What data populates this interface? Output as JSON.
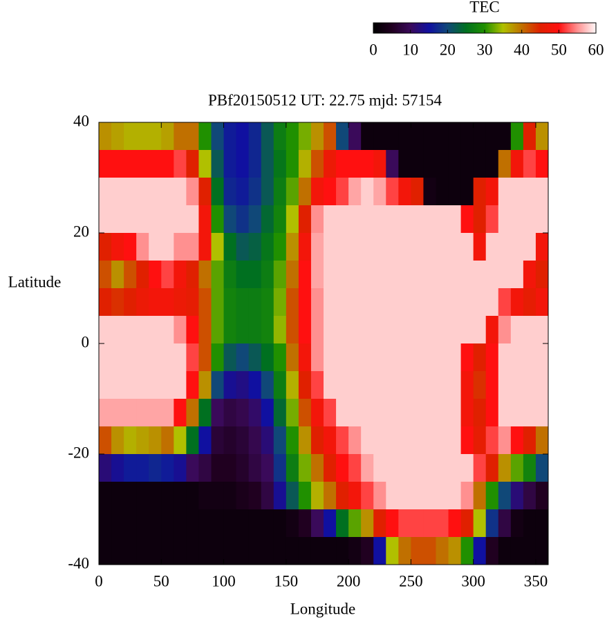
{
  "chart_data": {
    "type": "heatmap",
    "title": "PBf20150512  UT: 22.75  mjd: 57154",
    "xlabel": "Longitude",
    "ylabel": "Latitude",
    "colorbar_label": "TEC",
    "xlim": [
      0,
      360
    ],
    "ylim": [
      -40,
      40
    ],
    "xticks": [
      0,
      50,
      100,
      150,
      200,
      250,
      300,
      350
    ],
    "yticks": [
      -40,
      -20,
      0,
      20,
      40
    ],
    "clim": [
      0,
      60
    ],
    "cticks": [
      0,
      10,
      20,
      30,
      40,
      50,
      60
    ],
    "colors": [
      "#000000",
      "#200020",
      "#3a0a5a",
      "#1010a0",
      "#104878",
      "#007020",
      "#209000",
      "#b0c000",
      "#c07000",
      "#e02000",
      "#ff1010",
      "#ff9090",
      "#fff8f8"
    ],
    "xbins": [
      0,
      10,
      20,
      30,
      40,
      50,
      60,
      70,
      80,
      90,
      100,
      110,
      120,
      130,
      140,
      150,
      160,
      170,
      180,
      190,
      200,
      210,
      220,
      230,
      240,
      250,
      260,
      270,
      280,
      290,
      300,
      310,
      320,
      330,
      340,
      350,
      360
    ],
    "ybins": [
      40,
      35,
      30,
      25,
      20,
      15,
      10,
      5,
      0,
      -5,
      -10,
      -15,
      -20,
      -25,
      -30,
      -35,
      -40
    ],
    "z": [
      [
        38,
        37,
        36,
        36,
        36,
        37,
        40,
        40,
        30,
        20,
        16,
        15,
        17,
        22,
        27,
        30,
        33,
        38,
        42,
        20,
        10,
        2,
        2,
        2,
        2,
        2,
        2,
        2,
        2,
        2,
        2,
        2,
        2,
        30,
        45,
        38
      ],
      [
        50,
        50,
        50,
        50,
        50,
        50,
        52,
        45,
        35,
        22,
        16,
        15,
        17,
        22,
        26,
        30,
        36,
        42,
        47,
        50,
        50,
        50,
        48,
        10,
        2,
        2,
        2,
        2,
        2,
        2,
        2,
        2,
        40,
        48,
        52,
        50
      ],
      [
        58,
        58,
        58,
        58,
        58,
        58,
        58,
        55,
        45,
        25,
        17,
        16,
        18,
        22,
        27,
        32,
        40,
        48,
        50,
        52,
        56,
        58,
        56,
        52,
        48,
        45,
        3,
        2,
        2,
        2,
        45,
        48,
        58,
        58,
        58,
        58
      ],
      [
        58,
        58,
        58,
        58,
        58,
        58,
        58,
        58,
        48,
        30,
        20,
        18,
        20,
        24,
        28,
        35,
        45,
        55,
        58,
        58,
        58,
        58,
        58,
        58,
        58,
        58,
        58,
        58,
        58,
        50,
        45,
        52,
        58,
        58,
        58,
        58
      ],
      [
        45,
        48,
        50,
        55,
        58,
        58,
        55,
        55,
        48,
        35,
        25,
        22,
        23,
        26,
        30,
        38,
        48,
        56,
        58,
        58,
        58,
        58,
        58,
        58,
        58,
        58,
        58,
        58,
        58,
        58,
        48,
        58,
        58,
        58,
        58,
        48
      ],
      [
        42,
        38,
        42,
        45,
        50,
        52,
        48,
        45,
        40,
        32,
        27,
        25,
        25,
        27,
        32,
        40,
        50,
        56,
        58,
        58,
        58,
        58,
        58,
        58,
        58,
        58,
        58,
        58,
        58,
        58,
        58,
        58,
        58,
        58,
        48,
        45
      ],
      [
        45,
        44,
        45,
        47,
        48,
        48,
        47,
        46,
        42,
        32,
        28,
        27,
        27,
        28,
        33,
        42,
        50,
        55,
        58,
        58,
        58,
        58,
        58,
        58,
        58,
        58,
        58,
        58,
        58,
        58,
        58,
        58,
        52,
        48,
        46,
        48
      ],
      [
        58,
        58,
        58,
        58,
        58,
        58,
        55,
        50,
        42,
        32,
        28,
        27,
        27,
        28,
        34,
        42,
        50,
        55,
        58,
        58,
        58,
        58,
        58,
        58,
        58,
        58,
        58,
        58,
        58,
        58,
        58,
        48,
        55,
        58,
        58,
        58
      ],
      [
        58,
        58,
        58,
        58,
        58,
        58,
        58,
        52,
        42,
        30,
        22,
        20,
        22,
        25,
        30,
        40,
        48,
        55,
        58,
        58,
        58,
        58,
        58,
        58,
        58,
        58,
        58,
        58,
        58,
        50,
        45,
        50,
        58,
        58,
        58,
        58
      ],
      [
        58,
        58,
        58,
        58,
        58,
        58,
        58,
        50,
        38,
        20,
        14,
        13,
        15,
        20,
        27,
        36,
        45,
        52,
        58,
        58,
        58,
        58,
        58,
        58,
        58,
        58,
        58,
        58,
        58,
        48,
        44,
        50,
        58,
        58,
        58,
        58
      ],
      [
        56,
        56,
        56,
        56,
        56,
        56,
        50,
        40,
        25,
        10,
        8,
        9,
        11,
        15,
        24,
        33,
        42,
        48,
        52,
        58,
        58,
        58,
        58,
        58,
        58,
        58,
        58,
        58,
        58,
        48,
        45,
        50,
        58,
        58,
        58,
        58
      ],
      [
        42,
        38,
        36,
        37,
        38,
        40,
        35,
        25,
        15,
        7,
        6,
        7,
        9,
        12,
        20,
        30,
        38,
        45,
        48,
        52,
        55,
        58,
        58,
        58,
        58,
        58,
        58,
        58,
        58,
        50,
        46,
        52,
        55,
        50,
        45,
        40
      ],
      [
        12,
        14,
        16,
        16,
        17,
        16,
        14,
        10,
        8,
        5,
        5,
        6,
        8,
        10,
        18,
        27,
        33,
        40,
        45,
        50,
        52,
        56,
        58,
        58,
        58,
        58,
        58,
        58,
        58,
        58,
        52,
        45,
        38,
        32,
        28,
        20
      ],
      [
        2,
        2,
        2,
        2,
        2,
        2,
        2,
        2,
        3,
        3,
        3,
        4,
        5,
        8,
        14,
        22,
        30,
        36,
        40,
        45,
        48,
        52,
        55,
        58,
        58,
        58,
        58,
        58,
        58,
        55,
        40,
        30,
        20,
        12,
        8,
        5
      ],
      [
        2,
        2,
        2,
        2,
        2,
        2,
        2,
        2,
        2,
        2,
        2,
        2,
        2,
        2,
        2,
        3,
        5,
        10,
        15,
        25,
        32,
        38,
        45,
        50,
        52,
        52,
        52,
        52,
        50,
        45,
        35,
        18,
        8,
        3,
        2,
        2
      ],
      [
        2,
        2,
        2,
        2,
        2,
        2,
        2,
        2,
        2,
        2,
        2,
        2,
        2,
        2,
        2,
        2,
        2,
        2,
        2,
        2,
        3,
        5,
        15,
        35,
        40,
        42,
        42,
        40,
        38,
        30,
        15,
        5,
        2,
        2,
        2,
        2
      ]
    ]
  }
}
